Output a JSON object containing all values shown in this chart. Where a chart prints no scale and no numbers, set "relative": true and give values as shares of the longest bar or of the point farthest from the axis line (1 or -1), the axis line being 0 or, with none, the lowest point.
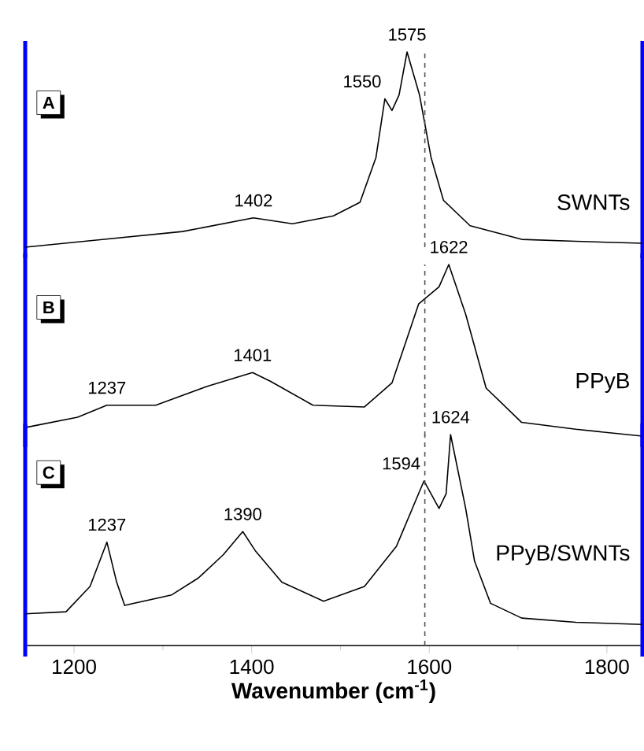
{
  "chart_data": [
    {
      "type": "line",
      "title": "A",
      "relative": true,
      "xlim": [
        1145,
        1840
      ],
      "tick_labels": false,
      "x": [
        1145,
        1234,
        1322,
        1402,
        1446,
        1492,
        1522,
        1540,
        1550,
        1558,
        1566,
        1575,
        1589,
        1602,
        1616,
        1646,
        1704,
        1765,
        1840
      ],
      "series": [
        {
          "name": "SWNTs",
          "color": "#000000",
          "values": [
            0,
            0.04,
            0.08,
            0.15,
            0.12,
            0.16,
            0.23,
            0.46,
            0.76,
            0.7,
            0.78,
            1,
            0.78,
            0.46,
            0.24,
            0.11,
            0.04,
            0.03,
            0.02
          ]
        }
      ],
      "annotations": [
        {
          "text": "1402",
          "x": 1402,
          "y": 0.15
        },
        {
          "text": "1550",
          "x": 1550,
          "y": 0.76
        },
        {
          "text": "1575",
          "x": 1575,
          "y": 1
        }
      ],
      "ref_lines": [
        {
          "axis": "x",
          "value": 1595,
          "color": "#555555",
          "line_style": "dashed"
        }
      ]
    },
    {
      "type": "line",
      "title": "B",
      "relative": true,
      "xlim": [
        1145,
        1840
      ],
      "tick_labels": false,
      "x": [
        1145,
        1204,
        1237,
        1292,
        1350,
        1401,
        1421,
        1469,
        1527,
        1558,
        1588,
        1611,
        1622,
        1641,
        1664,
        1704,
        1765,
        1840
      ],
      "series": [
        {
          "name": "PPyB",
          "color": "#000000",
          "values": [
            0.05,
            0.11,
            0.18,
            0.18,
            0.29,
            0.37,
            0.32,
            0.18,
            0.17,
            0.31,
            0.77,
            0.87,
            1,
            0.71,
            0.28,
            0.08,
            0.04,
            0
          ]
        }
      ],
      "annotations": [
        {
          "text": "1237",
          "x": 1237,
          "y": 0.18
        },
        {
          "text": "1401",
          "x": 1401,
          "y": 0.37
        },
        {
          "text": "1622",
          "x": 1622,
          "y": 1
        }
      ],
      "ref_lines": [
        {
          "axis": "x",
          "value": 1595,
          "color": "#555555",
          "line_style": "dashed"
        }
      ]
    },
    {
      "type": "line",
      "title": "C",
      "relative": true,
      "xlim": [
        1145,
        1840
      ],
      "xticks": [
        1200,
        1400,
        1600,
        1800
      ],
      "tick_labels": "x",
      "xlabel": "Wavenumber (cm$^{-1}$)",
      "x": [
        1145,
        1191,
        1218,
        1237,
        1248,
        1257,
        1310,
        1340,
        1368,
        1390,
        1404,
        1434,
        1481,
        1527,
        1563,
        1588,
        1594,
        1611,
        1619,
        1624,
        1641,
        1651,
        1669,
        1704,
        1765,
        1840
      ],
      "series": [
        {
          "name": "PPyB/SWNTs",
          "color": "#000000",
          "values": [
            0.15,
            0.16,
            0.28,
            0.49,
            0.3,
            0.19,
            0.24,
            0.32,
            0.43,
            0.54,
            0.45,
            0.3,
            0.21,
            0.28,
            0.47,
            0.72,
            0.78,
            0.65,
            0.72,
            1,
            0.65,
            0.4,
            0.2,
            0.13,
            0.11,
            0.1
          ]
        }
      ],
      "annotations": [
        {
          "text": "1237",
          "x": 1237,
          "y": 0.49
        },
        {
          "text": "1390",
          "x": 1390,
          "y": 0.54
        },
        {
          "text": "1594",
          "x": 1594,
          "y": 0.78
        },
        {
          "text": "1624",
          "x": 1624,
          "y": 1
        }
      ],
      "ref_lines": [
        {
          "axis": "x",
          "value": 1595,
          "color": "#555555",
          "line_style": "dashed"
        }
      ]
    }
  ]
}
